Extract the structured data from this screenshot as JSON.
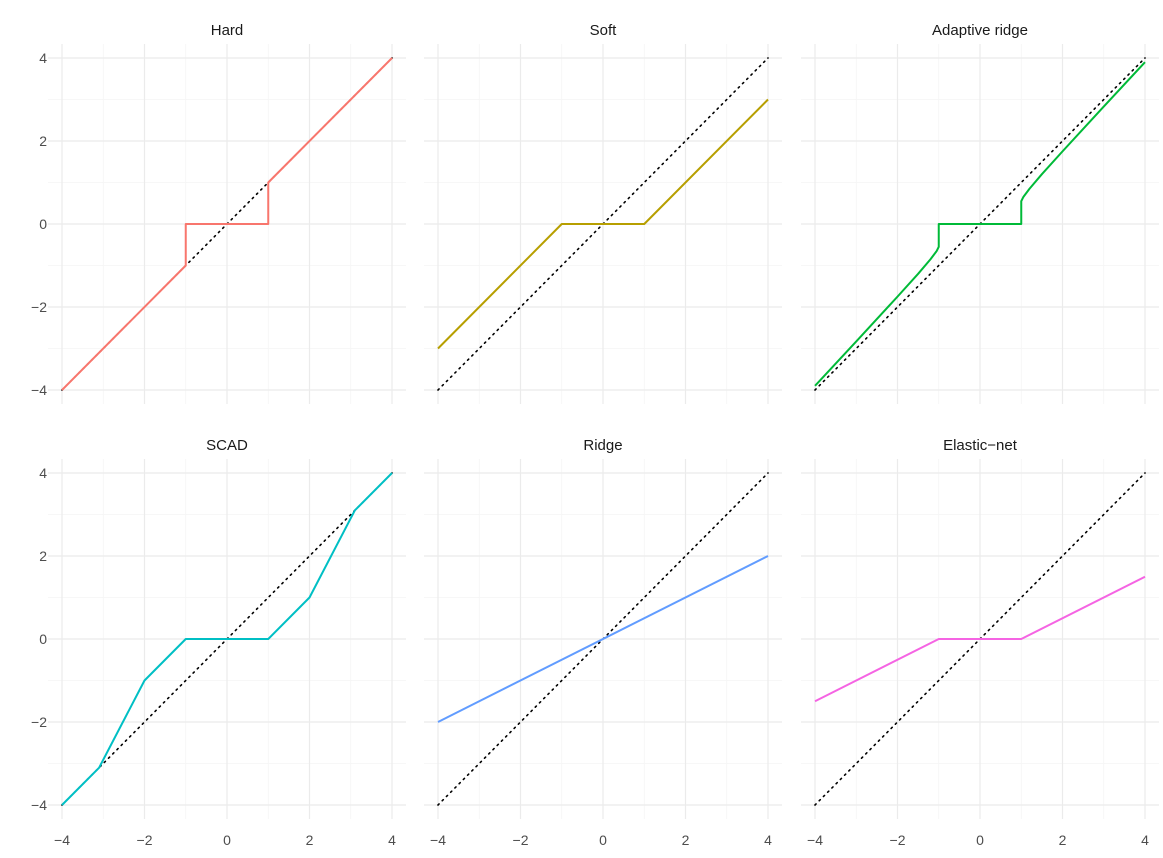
{
  "chart_data": {
    "type": "line",
    "facet_layout": {
      "rows": 2,
      "cols": 3
    },
    "xlim": [
      -4,
      4
    ],
    "ylim": [
      -4,
      4
    ],
    "x_ticks": [
      -4,
      -2,
      0,
      2,
      4
    ],
    "y_ticks": [
      -4,
      -2,
      0,
      2,
      4
    ],
    "x_tick_labels": [
      "−4",
      "−2",
      "0",
      "2",
      "4"
    ],
    "y_tick_labels": [
      "−4",
      "−2",
      "0",
      "2",
      "4"
    ],
    "grid": true,
    "reference_line": {
      "style": "dotted",
      "color": "#000000",
      "x": [
        -4,
        4
      ],
      "y": [
        -4,
        4
      ]
    },
    "facets": [
      {
        "title": "Hard",
        "color": "#F8766D",
        "segments": [
          {
            "x": [
              -4,
              -1,
              -1,
              1,
              1,
              4
            ],
            "y": [
              -4,
              -1,
              0,
              0,
              1,
              4
            ]
          }
        ]
      },
      {
        "title": "Soft",
        "color": "#B79F00",
        "segments": [
          {
            "x": [
              -4,
              -1,
              1,
              4
            ],
            "y": [
              -3,
              0,
              0,
              3
            ]
          }
        ]
      },
      {
        "title": "Adaptive ridge",
        "color": "#00BA38",
        "segments": [
          {
            "x": [
              -4,
              -3,
              -2,
              -1.5,
              -1.2,
              -1.05,
              -1.0,
              -1.0,
              1.0,
              1.0,
              1.05,
              1.2,
              1.5,
              2,
              3,
              4
            ],
            "y": [
              -3.9,
              -2.83,
              -1.75,
              -1.2,
              -0.85,
              -0.65,
              -0.55,
              0,
              0,
              0.55,
              0.65,
              0.85,
              1.2,
              1.75,
              2.83,
              3.9
            ]
          }
        ]
      },
      {
        "title": "SCAD",
        "color": "#00BFC4",
        "segments": [
          {
            "x": [
              -4,
              -3.1,
              -2,
              -1,
              1,
              2,
              3.1,
              4
            ],
            "y": [
              -4,
              -3.1,
              -1,
              0,
              0,
              1,
              3.1,
              4
            ]
          }
        ]
      },
      {
        "title": "Ridge",
        "color": "#619CFF",
        "segments": [
          {
            "x": [
              -4,
              4
            ],
            "y": [
              -2,
              2
            ]
          }
        ]
      },
      {
        "title": "Elastic−net",
        "color": "#F564E3",
        "segments": [
          {
            "x": [
              -4,
              -1,
              1,
              4
            ],
            "y": [
              -1.5,
              0,
              0,
              1.5
            ]
          }
        ]
      }
    ]
  }
}
